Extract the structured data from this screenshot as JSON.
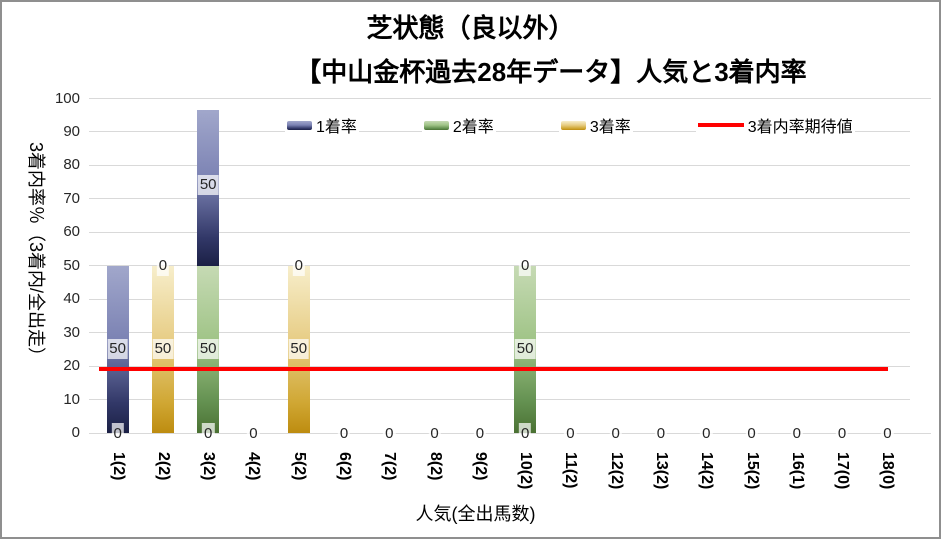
{
  "window": {
    "background": "#ffffff",
    "frame_color": "#8f8f8f"
  },
  "titles": {
    "title": "芝状態（良以外）",
    "subtitle": "【中山金杯過去28年データ】人気と3着内率"
  },
  "axes": {
    "y_title": "3着内率％（3着内/全出走）",
    "x_title": "人気(全出馬数)",
    "y_ticks": [
      "0",
      "10",
      "20",
      "30",
      "40",
      "50",
      "60",
      "70",
      "80",
      "90",
      "100"
    ]
  },
  "legend": {
    "items": [
      {
        "label": "1着率",
        "kind": "swatch",
        "color_key": "blue"
      },
      {
        "label": "2着率",
        "kind": "swatch",
        "color_key": "green"
      },
      {
        "label": "3着率",
        "kind": "swatch",
        "color_key": "gold"
      },
      {
        "label": "3着内率期待値",
        "kind": "line",
        "color_key": "red"
      }
    ]
  },
  "colors": {
    "blue": [
      "#a1a7cb",
      "#7b82b3",
      "#323868",
      "#1b2045"
    ],
    "green": [
      "#c6dab4",
      "#a0c487",
      "#639050",
      "#4a7133"
    ],
    "gold": [
      "#f7eecb",
      "#e7cd85",
      "#d0a733",
      "#bd8c10"
    ],
    "red": "#ff0000",
    "gridline": "#d9d9d9",
    "label_text": "#262626"
  },
  "chart_data": {
    "type": "bar",
    "subtype": "stacked-column-with-expected-value-line",
    "title": "芝状態（良以外）【中山金杯過去28年データ】人気と3着内率",
    "xlabel": "人気(全出馬数)",
    "ylabel": "3着内率％（3着内/全出走）",
    "ylim": [
      0,
      100
    ],
    "grid": true,
    "legend_position": "top-inside",
    "categories": [
      "1(2)",
      "2(2)",
      "3(2)",
      "4(2)",
      "5(2)",
      "6(2)",
      "7(2)",
      "8(2)",
      "9(2)",
      "10(2)",
      "11(2)",
      "12(2)",
      "13(2)",
      "14(2)",
      "15(2)",
      "16(1)",
      "17(0)",
      "18(0)"
    ],
    "stack_order_bottom_to_top": [
      "3着率",
      "2着率",
      "1着率"
    ],
    "series": [
      {
        "name": "1着率",
        "color_key": "blue",
        "values": [
          50,
          0,
          50,
          0,
          0,
          0,
          0,
          0,
          0,
          0,
          0,
          0,
          0,
          0,
          0,
          0,
          0,
          0
        ]
      },
      {
        "name": "2着率",
        "color_key": "green",
        "values": [
          0,
          0,
          50,
          0,
          0,
          0,
          0,
          0,
          0,
          50,
          0,
          0,
          0,
          0,
          0,
          0,
          0,
          0
        ]
      },
      {
        "name": "3着率",
        "color_key": "gold",
        "values": [
          0,
          50,
          0,
          0,
          50,
          0,
          0,
          0,
          0,
          0,
          0,
          0,
          0,
          0,
          0,
          0,
          0,
          0
        ]
      }
    ],
    "expected_line": {
      "name": "3着内率期待値",
      "value": 19
    },
    "visual_stack_top_override": {
      "2": 96.5
    },
    "data_labels": [
      {
        "cat": 0,
        "text": "50",
        "v": 25
      },
      {
        "cat": 0,
        "text": "0",
        "v": 0
      },
      {
        "cat": 1,
        "text": "0",
        "v": 50
      },
      {
        "cat": 1,
        "text": "50",
        "v": 25
      },
      {
        "cat": 2,
        "text": "50",
        "v": 74
      },
      {
        "cat": 2,
        "text": "50",
        "v": 25
      },
      {
        "cat": 2,
        "text": "0",
        "v": 0
      },
      {
        "cat": 3,
        "text": "0",
        "v": 0
      },
      {
        "cat": 4,
        "text": "0",
        "v": 50
      },
      {
        "cat": 4,
        "text": "50",
        "v": 25
      },
      {
        "cat": 5,
        "text": "0",
        "v": 0
      },
      {
        "cat": 6,
        "text": "0",
        "v": 0
      },
      {
        "cat": 7,
        "text": "0",
        "v": 0
      },
      {
        "cat": 8,
        "text": "0",
        "v": 0
      },
      {
        "cat": 9,
        "text": "0",
        "v": 50
      },
      {
        "cat": 9,
        "text": "50",
        "v": 25
      },
      {
        "cat": 9,
        "text": "0",
        "v": 0
      },
      {
        "cat": 10,
        "text": "0",
        "v": 0
      },
      {
        "cat": 11,
        "text": "0",
        "v": 0
      },
      {
        "cat": 12,
        "text": "0",
        "v": 0
      },
      {
        "cat": 13,
        "text": "0",
        "v": 0
      },
      {
        "cat": 14,
        "text": "0",
        "v": 0
      },
      {
        "cat": 15,
        "text": "0",
        "v": 0
      },
      {
        "cat": 16,
        "text": "0",
        "v": 0
      },
      {
        "cat": 17,
        "text": "0",
        "v": 0
      }
    ]
  }
}
